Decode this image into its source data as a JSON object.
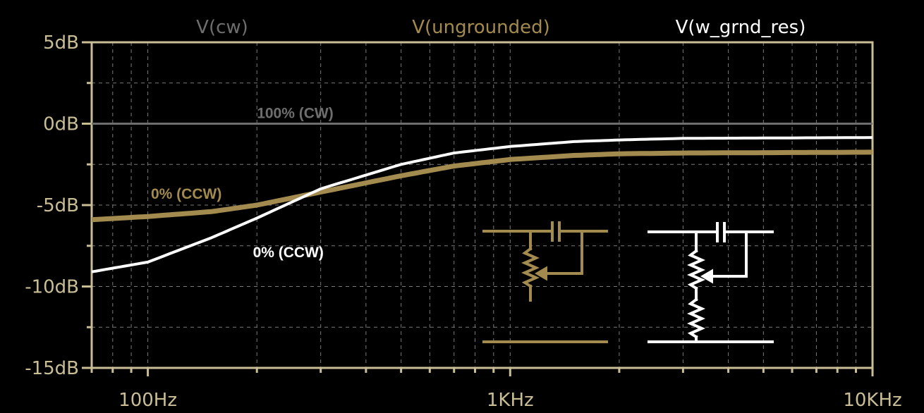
{
  "chart_data": {
    "type": "line",
    "x_scale": "log",
    "xlim": [
      70,
      10000
    ],
    "ylim": [
      -15,
      5
    ],
    "x_ticks": [
      {
        "value": 100,
        "label": "100Hz"
      },
      {
        "value": 1000,
        "label": "1KHz"
      },
      {
        "value": 10000,
        "label": "10KHz"
      }
    ],
    "y_ticks": [
      {
        "value": 5,
        "label": "5dB"
      },
      {
        "value": 0,
        "label": "0dB"
      },
      {
        "value": -5,
        "label": "-5dB"
      },
      {
        "value": -10,
        "label": "-10dB"
      },
      {
        "value": -15,
        "label": "-15dB"
      }
    ],
    "grid": true,
    "legend_placement": "top",
    "series": [
      {
        "name": "V(cw)",
        "color": "#6e6e6e",
        "x": [
          70,
          100,
          200,
          500,
          1000,
          2000,
          5000,
          10000
        ],
        "y": [
          0,
          0,
          0,
          0,
          0,
          0,
          0,
          0
        ]
      },
      {
        "name": "V(ungrounded)",
        "color": "#a38a4e",
        "x": [
          70,
          100,
          150,
          200,
          300,
          500,
          700,
          1000,
          1500,
          2000,
          3000,
          5000,
          10000
        ],
        "y": [
          -5.9,
          -5.7,
          -5.4,
          -5.0,
          -4.2,
          -3.2,
          -2.6,
          -2.2,
          -1.95,
          -1.85,
          -1.8,
          -1.78,
          -1.75
        ]
      },
      {
        "name": "V(w_grnd_res)",
        "color": "#ffffff",
        "x": [
          70,
          100,
          150,
          200,
          300,
          500,
          700,
          1000,
          1500,
          2000,
          3000,
          5000,
          10000
        ],
        "y": [
          -9.1,
          -8.5,
          -7.0,
          -5.8,
          -4.0,
          -2.5,
          -1.8,
          -1.4,
          -1.1,
          -1.0,
          -0.9,
          -0.88,
          -0.85
        ]
      }
    ],
    "annotations": [
      {
        "text": "100% (CW)",
        "x": 200,
        "y": 0.35,
        "color": "#6e6e6e"
      },
      {
        "text": "0% (CCW)",
        "x": 102,
        "y": -4.6,
        "color": "#a38a4e"
      },
      {
        "text": "0% (CCW)",
        "x": 195,
        "y": -8.2,
        "color": "#ffffff"
      }
    ]
  },
  "colors": {
    "frame": "#c9bd96",
    "grid": "#7a7a7a",
    "background": "#000000"
  }
}
